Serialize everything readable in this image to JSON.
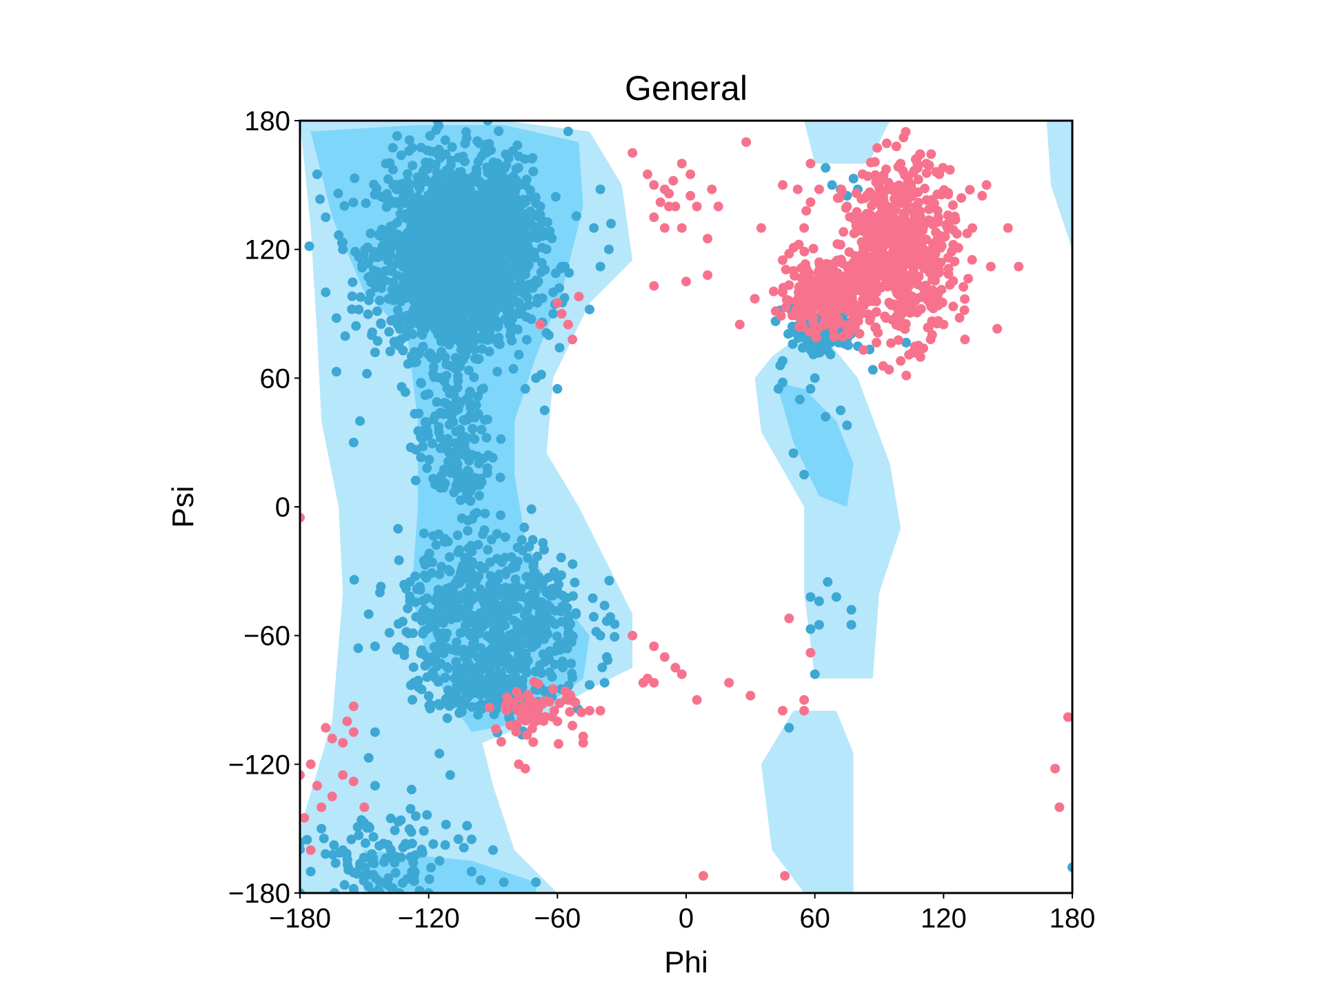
{
  "chart_data": {
    "type": "scatter",
    "title": "General",
    "xlabel": "Phi",
    "ylabel": "Psi",
    "xlim": [
      -180,
      180
    ],
    "ylim": [
      -180,
      180
    ],
    "xticks": [
      -180,
      -120,
      -60,
      0,
      60,
      120,
      180
    ],
    "yticks": [
      -180,
      -120,
      -60,
      0,
      60,
      120,
      180
    ],
    "xtick_labels": [
      "−180",
      "−120",
      "−60",
      "0",
      "60",
      "120",
      "180"
    ],
    "ytick_labels": [
      "−180",
      "−120",
      "−60",
      "0",
      "60",
      "120",
      "180"
    ],
    "grid": false,
    "legend": "none",
    "background_regions": [
      {
        "level": "allowed",
        "color": "#b7e7fb",
        "polygons": [
          [
            [
              -180,
              180
            ],
            [
              -135,
              180
            ],
            [
              -85,
              180
            ],
            [
              -45,
              175
            ],
            [
              -30,
              150
            ],
            [
              -25,
              115
            ],
            [
              -45,
              95
            ],
            [
              -62,
              60
            ],
            [
              -65,
              25
            ],
            [
              -50,
              0
            ],
            [
              -40,
              -20
            ],
            [
              -25,
              -50
            ],
            [
              -25,
              -75
            ],
            [
              -45,
              -85
            ],
            [
              -70,
              -100
            ],
            [
              -95,
              -110
            ],
            [
              -90,
              -130
            ],
            [
              -80,
              -160
            ],
            [
              -60,
              -180
            ],
            [
              -180,
              -180
            ],
            [
              -180,
              -150
            ],
            [
              -165,
              -100
            ],
            [
              -160,
              -40
            ],
            [
              -162,
              0
            ],
            [
              -170,
              40
            ],
            [
              -172,
              80
            ],
            [
              -175,
              130
            ]
          ],
          [
            [
              40,
              70
            ],
            [
              60,
              85
            ],
            [
              80,
              60
            ],
            [
              95,
              20
            ],
            [
              100,
              -10
            ],
            [
              90,
              -40
            ],
            [
              87,
              -80
            ],
            [
              60,
              -80
            ],
            [
              55,
              -40
            ],
            [
              55,
              0
            ],
            [
              35,
              35
            ],
            [
              32,
              60
            ]
          ],
          [
            [
              35,
              -120
            ],
            [
              50,
              -95
            ],
            [
              70,
              -95
            ],
            [
              78,
              -115
            ],
            [
              78,
              -180
            ],
            [
              55,
              -180
            ],
            [
              40,
              -160
            ]
          ],
          [
            [
              55,
              180
            ],
            [
              95,
              180
            ],
            [
              85,
              160
            ],
            [
              60,
              160
            ]
          ],
          [
            [
              168,
              180
            ],
            [
              180,
              180
            ],
            [
              180,
              120
            ],
            [
              170,
              150
            ]
          ]
        ]
      },
      {
        "level": "favored",
        "color": "#7fd6fb",
        "polygons": [
          [
            [
              -175,
              175
            ],
            [
              -125,
              178
            ],
            [
              -85,
              178
            ],
            [
              -50,
              170
            ],
            [
              -48,
              140
            ],
            [
              -58,
              100
            ],
            [
              -70,
              70
            ],
            [
              -80,
              40
            ],
            [
              -80,
              15
            ],
            [
              -75,
              -15
            ],
            [
              -65,
              -35
            ],
            [
              -45,
              -60
            ],
            [
              -48,
              -80
            ],
            [
              -75,
              -100
            ],
            [
              -100,
              -105
            ],
            [
              -120,
              -75
            ],
            [
              -128,
              -40
            ],
            [
              -125,
              0
            ],
            [
              -125,
              40
            ],
            [
              -130,
              80
            ],
            [
              -150,
              100
            ],
            [
              -165,
              135
            ]
          ],
          [
            [
              42,
              58
            ],
            [
              55,
              55
            ],
            [
              70,
              40
            ],
            [
              78,
              20
            ],
            [
              75,
              0
            ],
            [
              62,
              5
            ],
            [
              50,
              30
            ]
          ],
          [
            [
              -150,
              -160
            ],
            [
              -100,
              -165
            ],
            [
              -70,
              -175
            ],
            [
              -70,
              -180
            ],
            [
              -150,
              -180
            ]
          ]
        ]
      }
    ],
    "series": [
      {
        "color": "#3ca8d3",
        "clusters": [
          {
            "center": [
              -108,
              118
            ],
            "spread": [
              18,
              22
            ],
            "count": 1600
          },
          {
            "center": [
              -85,
              132
            ],
            "spread": [
              10,
              16
            ],
            "count": 250
          },
          {
            "center": [
              -110,
              100
            ],
            "spread": [
              13,
              14
            ],
            "count": 350
          },
          {
            "center": [
              -108,
              30
            ],
            "spread": [
              9,
              20
            ],
            "count": 170
          },
          {
            "center": [
              -90,
              -50
            ],
            "spread": [
              22,
              18
            ],
            "count": 550
          },
          {
            "center": [
              -92,
              -82
            ],
            "spread": [
              13,
              7
            ],
            "count": 200
          },
          {
            "center": [
              -142,
              -165
            ],
            "spread": [
              17,
              12
            ],
            "count": 110
          },
          {
            "center": [
              64,
              82
            ],
            "spread": [
              9,
              6
            ],
            "count": 110
          }
        ],
        "points": [
          [
            -172,
            155
          ],
          [
            -168,
            135
          ],
          [
            -160,
            120
          ],
          [
            -168,
            100
          ],
          [
            -163,
            88
          ],
          [
            -163,
            63
          ],
          [
            -145,
            72
          ],
          [
            -138,
            120
          ],
          [
            -135,
            148
          ],
          [
            -140,
            160
          ],
          [
            -152,
            40
          ],
          [
            -155,
            30
          ],
          [
            -43,
            130
          ],
          [
            -36,
            120
          ],
          [
            -35,
            132
          ],
          [
            -40,
            148
          ],
          [
            -40,
            112
          ],
          [
            -45,
            92
          ],
          [
            -62,
            90
          ],
          [
            -64,
            80
          ],
          [
            -60,
            55
          ],
          [
            -62,
            100
          ],
          [
            -70,
            60
          ],
          [
            -66,
            45
          ],
          [
            -75,
            55
          ],
          [
            -82,
            80
          ],
          [
            -55,
            175
          ],
          [
            -148,
            -50
          ],
          [
            -145,
            -65
          ],
          [
            -40,
            -60
          ],
          [
            -37,
            -70
          ],
          [
            -45,
            -83
          ],
          [
            -38,
            -82
          ],
          [
            -170,
            -150
          ],
          [
            -160,
            -160
          ],
          [
            -155,
            -178
          ],
          [
            -175,
            -170
          ],
          [
            -145,
            -105
          ],
          [
            -148,
            -117
          ],
          [
            -145,
            -130
          ],
          [
            -110,
            -125
          ],
          [
            -115,
            -115
          ],
          [
            -100,
            -170
          ],
          [
            -120,
            -180
          ],
          [
            -85,
            -175
          ],
          [
            -70,
            -175
          ],
          [
            -100,
            -155
          ],
          [
            -90,
            -160
          ],
          [
            65,
            158
          ],
          [
            68,
            150
          ],
          [
            72,
            148
          ],
          [
            75,
            145
          ],
          [
            78,
            153
          ],
          [
            80,
            148
          ],
          [
            45,
            68
          ],
          [
            43,
            55
          ],
          [
            45,
            58
          ],
          [
            58,
            55
          ],
          [
            53,
            50
          ],
          [
            50,
            25
          ],
          [
            55,
            15
          ],
          [
            60,
            60
          ],
          [
            66,
            -35
          ],
          [
            62,
            -44
          ],
          [
            58,
            -42
          ],
          [
            58,
            -57
          ],
          [
            62,
            -55
          ],
          [
            70,
            -42
          ],
          [
            77,
            -48
          ],
          [
            77,
            -55
          ],
          [
            60,
            -78
          ],
          [
            48,
            -103
          ],
          [
            180,
            -168
          ],
          [
            65,
            42
          ],
          [
            75,
            38
          ],
          [
            72,
            45
          ]
        ]
      },
      {
        "color": "#f7728c",
        "clusters": [
          {
            "center": [
              100,
              120
            ],
            "spread": [
              13,
              20
            ],
            "count": 550
          },
          {
            "center": [
              65,
              98
            ],
            "spread": [
              10,
              8
            ],
            "count": 300
          },
          {
            "center": [
              -70,
              -95
            ],
            "spread": [
              10,
              6
            ],
            "count": 60
          }
        ],
        "points": [
          [
            -18,
            155
          ],
          [
            -15,
            150
          ],
          [
            -10,
            148
          ],
          [
            -12,
            142
          ],
          [
            -8,
            146
          ],
          [
            -6,
            152
          ],
          [
            -5,
            140
          ],
          [
            -10,
            130
          ],
          [
            -15,
            135
          ],
          [
            -8,
            140
          ],
          [
            -2,
            130
          ],
          [
            -2,
            160
          ],
          [
            2,
            155
          ],
          [
            2,
            145
          ],
          [
            10,
            125
          ],
          [
            12,
            148
          ],
          [
            15,
            140
          ],
          [
            5,
            140
          ],
          [
            10,
            108
          ],
          [
            0,
            105
          ],
          [
            -15,
            103
          ],
          [
            -25,
            165
          ],
          [
            28,
            170
          ],
          [
            35,
            130
          ],
          [
            45,
            115
          ],
          [
            48,
            118
          ],
          [
            50,
            110
          ],
          [
            45,
            100
          ],
          [
            32,
            97
          ],
          [
            25,
            85
          ],
          [
            45,
            150
          ],
          [
            52,
            148
          ],
          [
            58,
            142
          ],
          [
            62,
            148
          ],
          [
            56,
            138
          ],
          [
            55,
            130
          ],
          [
            58,
            160
          ],
          [
            75,
            140
          ],
          [
            85,
            132
          ],
          [
            140,
            150
          ],
          [
            138,
            145
          ],
          [
            142,
            112
          ],
          [
            150,
            130
          ],
          [
            155,
            112
          ],
          [
            145,
            83
          ],
          [
            130,
            78
          ],
          [
            120,
            85
          ],
          [
            98,
            168
          ],
          [
            100,
            160
          ],
          [
            107,
            162
          ],
          [
            108,
            158
          ],
          [
            112,
            160
          ],
          [
            118,
            155
          ],
          [
            100,
            68
          ],
          [
            -180,
            -5
          ],
          [
            -180,
            -125
          ],
          [
            -178,
            -145
          ],
          [
            -175,
            -120
          ],
          [
            -172,
            -130
          ],
          [
            -170,
            -140
          ],
          [
            -165,
            -135
          ],
          [
            -160,
            -125
          ],
          [
            -160,
            -110
          ],
          [
            -165,
            -108
          ],
          [
            -168,
            -103
          ],
          [
            -155,
            -105
          ],
          [
            -158,
            -100
          ],
          [
            -155,
            -93
          ],
          [
            -150,
            -140
          ],
          [
            -175,
            -160
          ],
          [
            -155,
            -128
          ],
          [
            -10,
            -70
          ],
          [
            -15,
            -82
          ],
          [
            -20,
            -82
          ],
          [
            -18,
            -80
          ],
          [
            -5,
            -75
          ],
          [
            -2,
            -78
          ],
          [
            5,
            -90
          ],
          [
            20,
            -82
          ],
          [
            30,
            -88
          ],
          [
            45,
            -95
          ],
          [
            55,
            -90
          ],
          [
            55,
            -95
          ],
          [
            -60,
            -100
          ],
          [
            -53,
            -102
          ],
          [
            -48,
            -107
          ],
          [
            -40,
            -95
          ],
          [
            -45,
            -95
          ],
          [
            -55,
            -90
          ],
          [
            -62,
            -85
          ],
          [
            -78,
            -120
          ],
          [
            -75,
            -122
          ],
          [
            -48,
            -110
          ],
          [
            8,
            -172
          ],
          [
            46,
            -172
          ],
          [
            -60,
            95
          ],
          [
            -58,
            90
          ],
          [
            -55,
            85
          ],
          [
            -53,
            78
          ],
          [
            -50,
            98
          ],
          [
            -68,
            85
          ],
          [
            -15,
            -65
          ],
          [
            -25,
            -60
          ],
          [
            178,
            -98
          ],
          [
            172,
            -122
          ],
          [
            174,
            -140
          ],
          [
            48,
            -52
          ],
          [
            58,
            -68
          ]
        ]
      }
    ]
  }
}
